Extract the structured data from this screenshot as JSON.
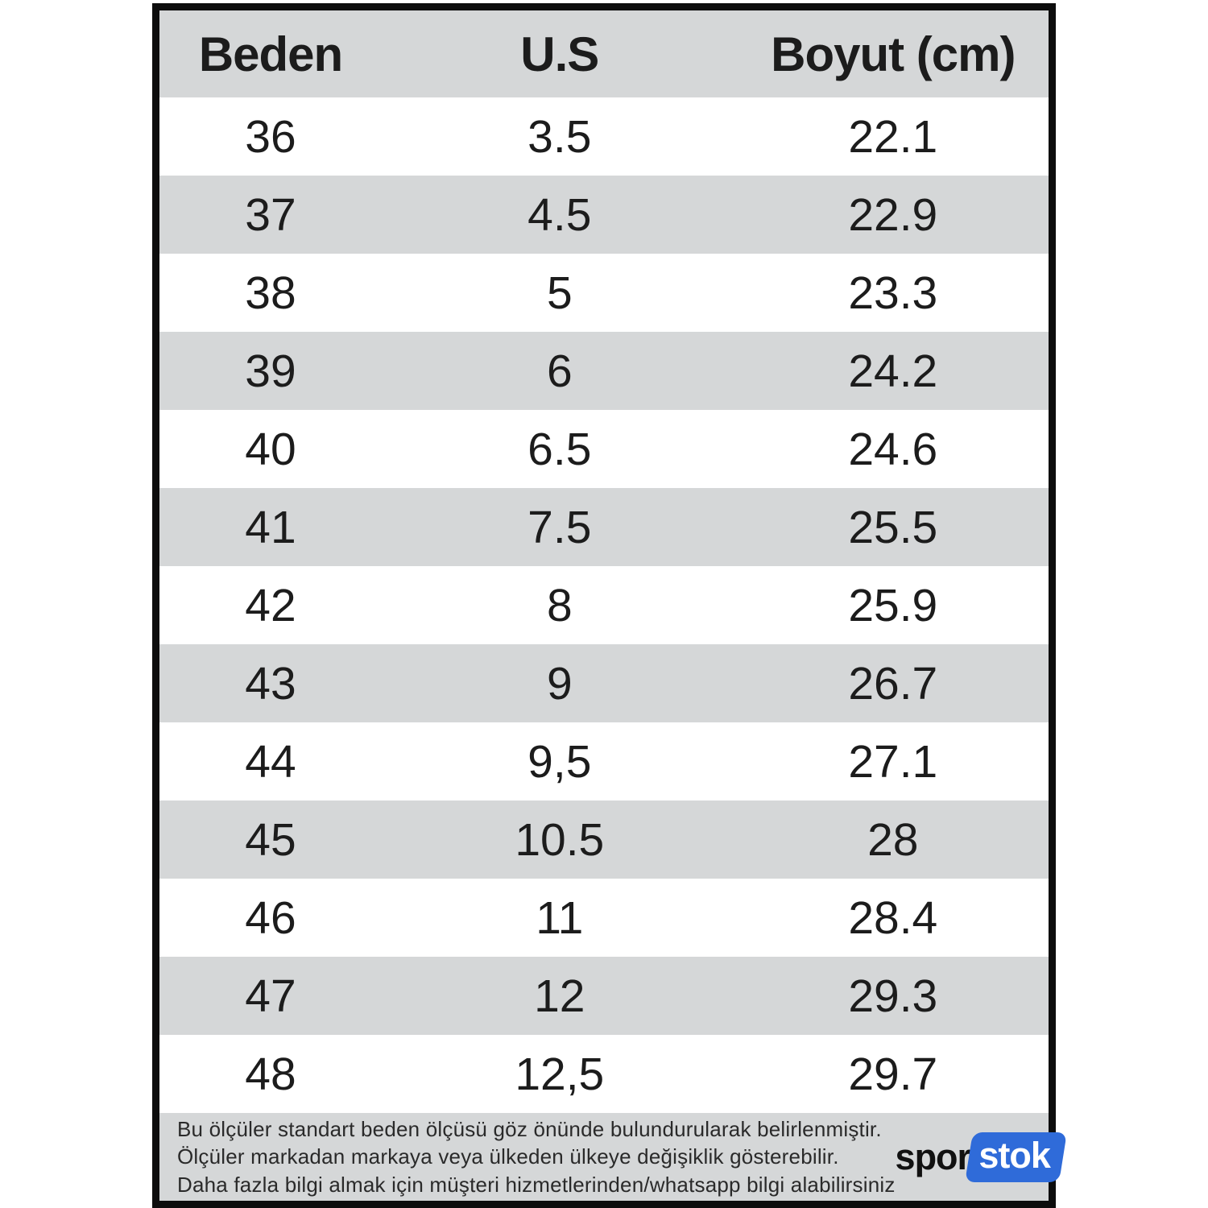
{
  "colors": {
    "stripe_gray": "#d5d7d8",
    "border_black": "#0d0d0d",
    "badge_blue": "#2f6bd9"
  },
  "table": {
    "headers": [
      "Beden",
      "U.S",
      "Boyut (cm)"
    ],
    "rows": [
      [
        "36",
        "3.5",
        "22.1"
      ],
      [
        "37",
        "4.5",
        "22.9"
      ],
      [
        "38",
        "5",
        "23.3"
      ],
      [
        "39",
        "6",
        "24.2"
      ],
      [
        "40",
        "6.5",
        "24.6"
      ],
      [
        "41",
        "7.5",
        "25.5"
      ],
      [
        "42",
        "8",
        "25.9"
      ],
      [
        "43",
        "9",
        "26.7"
      ],
      [
        "44",
        "9,5",
        "27.1"
      ],
      [
        "45",
        "10.5",
        "28"
      ],
      [
        "46",
        "11",
        "28.4"
      ],
      [
        "47",
        "12",
        "29.3"
      ],
      [
        "48",
        "12,5",
        "29.7"
      ]
    ]
  },
  "footer": {
    "lines": [
      "Bu ölçüler standart beden ölçüsü göz önünde bulundurularak belirlenmiştir.",
      "Ölçüler markadan markaya veya ülkeden ülkeye değişiklik gösterebilir.",
      "Daha fazla bilgi almak için müşteri hizmetlerinden/whatsapp bilgi alabilirsiniz"
    ],
    "logo": {
      "part1": "spor",
      "part2": "stok"
    }
  }
}
